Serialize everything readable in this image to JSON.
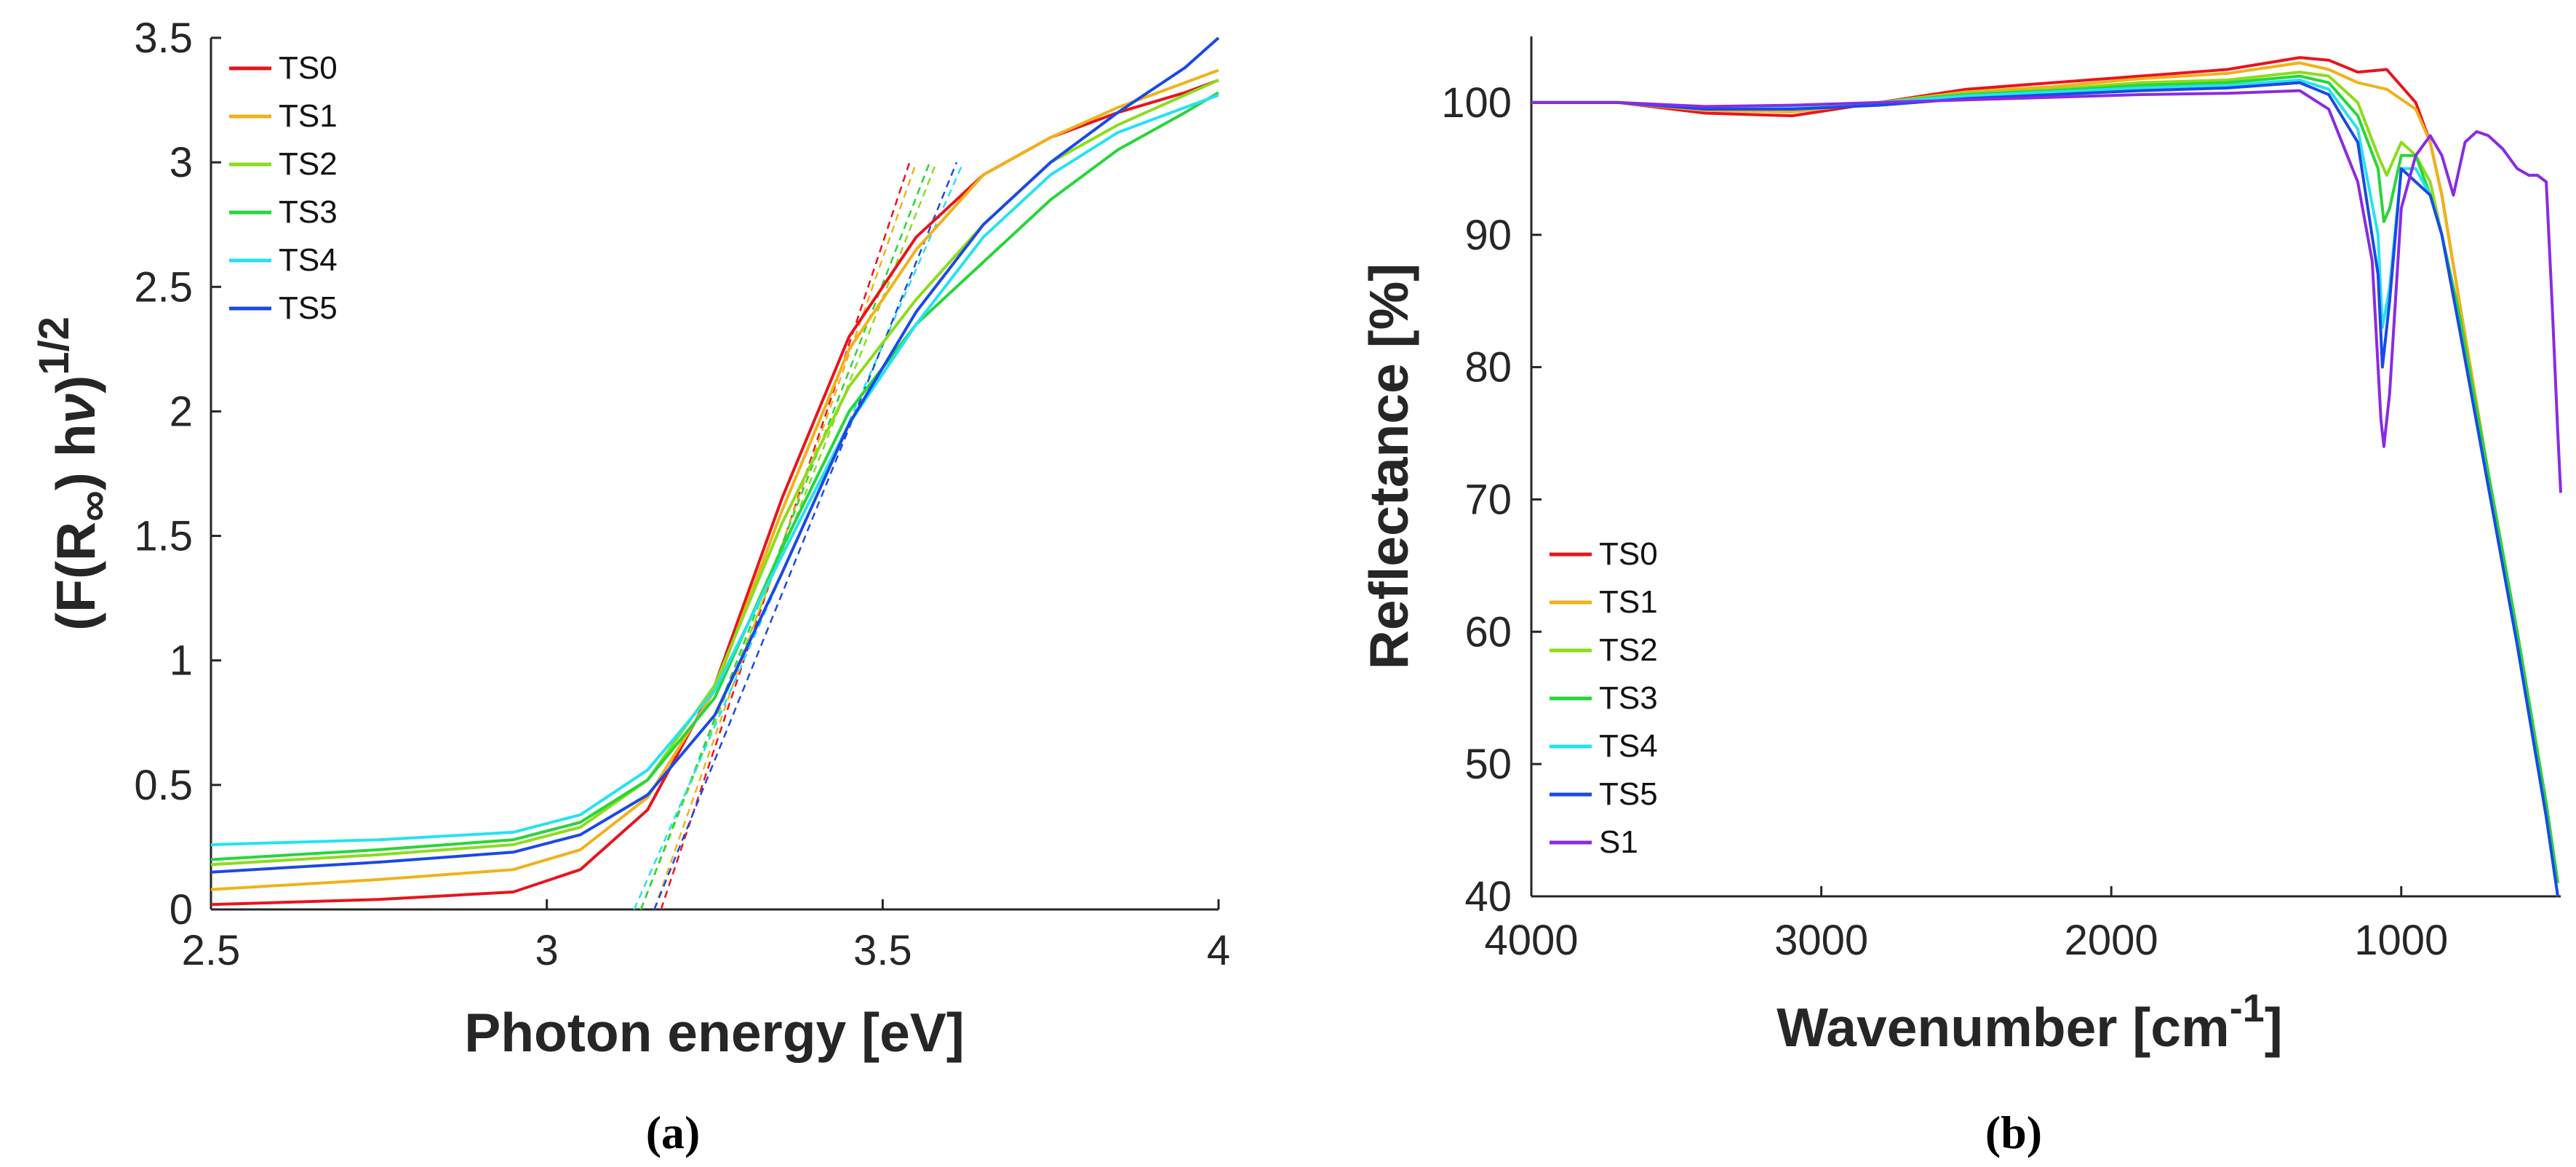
{
  "colors": {
    "TS0": "#e8141e",
    "TS1": "#f0b21a",
    "TS2": "#8ddc1c",
    "TS3": "#27d63a",
    "TS4": "#26e2f0",
    "TS5": "#1b49e6",
    "S1": "#8a2be2"
  },
  "chart_data": [
    {
      "type": "line",
      "caption": "(a)",
      "xlabel": "Photon energy [eV]",
      "ylabel_parts": {
        "prefix": "(F(R",
        "sub": "∞",
        "mid": ") h",
        "nu": "ν",
        "close": ")",
        "sup": "1/2"
      },
      "xlim": [
        2.5,
        4
      ],
      "ylim": [
        0,
        3.5
      ],
      "xticks": [
        2.5,
        3,
        3.5,
        4
      ],
      "xtick_labels": [
        "2.5",
        "3",
        "3.5",
        "4"
      ],
      "yticks": [
        0,
        0.5,
        1,
        1.5,
        2,
        2.5,
        3,
        3.5
      ],
      "ytick_labels": [
        "0",
        "0.5",
        "1",
        "1.5",
        "2",
        "2.5",
        "3",
        "3.5"
      ],
      "legend": [
        "TS0",
        "TS1",
        "TS2",
        "TS3",
        "TS4",
        "TS5"
      ],
      "legend_position": "top-left",
      "series": [
        {
          "name": "TS0",
          "x": [
            2.5,
            2.75,
            2.95,
            3.05,
            3.15,
            3.25,
            3.35,
            3.45,
            3.55,
            3.65,
            3.75,
            3.85,
            3.95,
            4.0
          ],
          "y": [
            0.02,
            0.04,
            0.07,
            0.16,
            0.4,
            0.9,
            1.65,
            2.3,
            2.7,
            2.95,
            3.1,
            3.2,
            3.28,
            3.33
          ]
        },
        {
          "name": "TS1",
          "x": [
            2.5,
            2.75,
            2.95,
            3.05,
            3.15,
            3.25,
            3.35,
            3.45,
            3.55,
            3.65,
            3.75,
            3.85,
            3.95,
            4.0
          ],
          "y": [
            0.08,
            0.12,
            0.16,
            0.24,
            0.45,
            0.88,
            1.6,
            2.25,
            2.65,
            2.95,
            3.1,
            3.22,
            3.32,
            3.37
          ]
        },
        {
          "name": "TS2",
          "x": [
            2.5,
            2.75,
            2.95,
            3.05,
            3.15,
            3.25,
            3.35,
            3.45,
            3.55,
            3.65,
            3.75,
            3.85,
            3.95,
            4.0
          ],
          "y": [
            0.18,
            0.22,
            0.26,
            0.33,
            0.52,
            0.9,
            1.55,
            2.1,
            2.45,
            2.75,
            3.0,
            3.15,
            3.27,
            3.33
          ]
        },
        {
          "name": "TS3",
          "x": [
            2.5,
            2.75,
            2.95,
            3.05,
            3.15,
            3.25,
            3.35,
            3.45,
            3.55,
            3.65,
            3.75,
            3.85,
            3.95,
            4.0
          ],
          "y": [
            0.2,
            0.24,
            0.28,
            0.35,
            0.52,
            0.85,
            1.45,
            2.0,
            2.35,
            2.6,
            2.85,
            3.05,
            3.2,
            3.28
          ]
        },
        {
          "name": "TS4",
          "x": [
            2.5,
            2.75,
            2.95,
            3.05,
            3.15,
            3.25,
            3.35,
            3.45,
            3.55,
            3.65,
            3.75,
            3.85,
            3.95,
            4.0
          ],
          "y": [
            0.26,
            0.28,
            0.31,
            0.38,
            0.56,
            0.88,
            1.42,
            1.95,
            2.35,
            2.7,
            2.95,
            3.12,
            3.22,
            3.27
          ]
        },
        {
          "name": "TS5",
          "x": [
            2.5,
            2.75,
            2.95,
            3.05,
            3.15,
            3.25,
            3.35,
            3.45,
            3.55,
            3.65,
            3.75,
            3.85,
            3.95,
            4.0
          ],
          "y": [
            0.15,
            0.19,
            0.23,
            0.3,
            0.46,
            0.78,
            1.35,
            1.95,
            2.4,
            2.75,
            3.0,
            3.2,
            3.38,
            3.5
          ]
        }
      ],
      "tangents": [
        {
          "name": "TS0",
          "x": [
            3.17,
            3.54
          ],
          "y": [
            0,
            3.0
          ]
        },
        {
          "name": "TS1",
          "x": [
            3.16,
            3.55
          ],
          "y": [
            0,
            3.0
          ]
        },
        {
          "name": "TS2",
          "x": [
            3.14,
            3.58
          ],
          "y": [
            0,
            3.0
          ]
        },
        {
          "name": "TS3",
          "x": [
            3.14,
            3.57
          ],
          "y": [
            0,
            3.0
          ]
        },
        {
          "name": "TS4",
          "x": [
            3.13,
            3.62
          ],
          "y": [
            0,
            3.0
          ]
        },
        {
          "name": "TS5",
          "x": [
            3.16,
            3.61
          ],
          "y": [
            0,
            3.0
          ]
        }
      ]
    },
    {
      "type": "line",
      "caption": "(b)",
      "xlabel_main": "Wavenumber [cm",
      "xlabel_sup": "-1",
      "xlabel_close": "]",
      "ylabel": "Reflectance [%]",
      "xlim": [
        4000,
        450
      ],
      "x_reversed": true,
      "ylim": [
        40,
        105
      ],
      "xticks": [
        4000,
        3000,
        2000,
        1000
      ],
      "xtick_labels": [
        "4000",
        "3000",
        "2000",
        "1000"
      ],
      "yticks": [
        40,
        50,
        60,
        70,
        80,
        90,
        100
      ],
      "ytick_labels": [
        "40",
        "50",
        "60",
        "70",
        "80",
        "90",
        "100"
      ],
      "legend": [
        "TS0",
        "TS1",
        "TS2",
        "TS3",
        "TS4",
        "TS5",
        "S1"
      ],
      "legend_position": "bottom-left",
      "series": [
        {
          "name": "TS0",
          "x": [
            4000,
            3700,
            3400,
            3100,
            2800,
            2500,
            2200,
            1900,
            1600,
            1350,
            1250,
            1150,
            1050,
            950,
            900,
            860,
            800,
            700,
            600,
            500,
            460
          ],
          "y": [
            100,
            100,
            99.2,
            99,
            100,
            101,
            101.5,
            102,
            102.5,
            103.4,
            103.2,
            102.3,
            102.5,
            100,
            97,
            93,
            85,
            72,
            60,
            47,
            41
          ]
        },
        {
          "name": "TS1",
          "x": [
            4000,
            3700,
            3400,
            3100,
            2800,
            2500,
            2200,
            1900,
            1600,
            1350,
            1250,
            1150,
            1050,
            950,
            900,
            860,
            800,
            700,
            600,
            500,
            460
          ],
          "y": [
            100,
            100,
            99.4,
            99.3,
            100,
            100.8,
            101.2,
            101.8,
            102.2,
            103,
            102.5,
            101.5,
            101,
            99.5,
            97,
            93,
            85,
            72,
            60,
            47,
            41
          ]
        },
        {
          "name": "TS2",
          "x": [
            4000,
            3700,
            3400,
            3100,
            2800,
            2500,
            2200,
            1900,
            1600,
            1350,
            1250,
            1150,
            1080,
            1050,
            1000,
            950,
            900,
            860,
            800,
            700,
            600,
            500,
            460
          ],
          "y": [
            100,
            100,
            99.5,
            99.5,
            100,
            100.7,
            101,
            101.5,
            101.7,
            102.3,
            102,
            100,
            96,
            94.5,
            97,
            96,
            94,
            90,
            84,
            72,
            60,
            47,
            41
          ]
        },
        {
          "name": "TS3",
          "x": [
            4000,
            3700,
            3400,
            3100,
            2800,
            2500,
            2200,
            1900,
            1600,
            1350,
            1250,
            1150,
            1080,
            1060,
            1040,
            1000,
            950,
            900,
            860,
            800,
            700,
            600,
            500,
            460
          ],
          "y": [
            100,
            100,
            99.5,
            99.6,
            100,
            100.6,
            100.9,
            101.3,
            101.5,
            102,
            101.5,
            99,
            95,
            91,
            92,
            96,
            96,
            93,
            90,
            84,
            72,
            60,
            47,
            41
          ]
        },
        {
          "name": "TS4",
          "x": [
            4000,
            3700,
            3400,
            3100,
            2800,
            2500,
            2200,
            1900,
            1600,
            1350,
            1250,
            1150,
            1080,
            1065,
            1040,
            1000,
            950,
            900,
            860,
            800,
            700,
            600,
            500,
            460
          ],
          "y": [
            100,
            100,
            99.6,
            99.7,
            100,
            100.5,
            100.8,
            101.1,
            101.3,
            101.7,
            101,
            98,
            90,
            83,
            86,
            95,
            95,
            93,
            90,
            83,
            71,
            59,
            46,
            40
          ]
        },
        {
          "name": "TS5",
          "x": [
            4000,
            3700,
            3400,
            3100,
            2800,
            2500,
            2200,
            1900,
            1600,
            1350,
            1250,
            1150,
            1080,
            1065,
            1040,
            1000,
            950,
            900,
            860,
            800,
            700,
            600,
            500,
            460
          ],
          "y": [
            100,
            100,
            99.5,
            99.5,
            99.8,
            100.3,
            100.6,
            100.9,
            101.1,
            101.5,
            100.6,
            97,
            87,
            80,
            85,
            95,
            94,
            93,
            90,
            83,
            71,
            59,
            46,
            40
          ]
        },
        {
          "name": "S1",
          "x": [
            4000,
            3700,
            3400,
            3100,
            2800,
            2500,
            2200,
            1900,
            1600,
            1350,
            1250,
            1150,
            1100,
            1070,
            1060,
            1040,
            1000,
            950,
            900,
            860,
            820,
            780,
            740,
            700,
            650,
            600,
            560,
            530,
            500,
            480,
            460,
            450
          ],
          "y": [
            100,
            100,
            99.7,
            99.8,
            100,
            100.2,
            100.4,
            100.6,
            100.7,
            100.9,
            99.5,
            94,
            88,
            76,
            74,
            78,
            92,
            96,
            97.5,
            96,
            93,
            97,
            97.8,
            97.5,
            96.5,
            95,
            94.5,
            94.5,
            94,
            85,
            75,
            70.5
          ]
        }
      ]
    }
  ]
}
